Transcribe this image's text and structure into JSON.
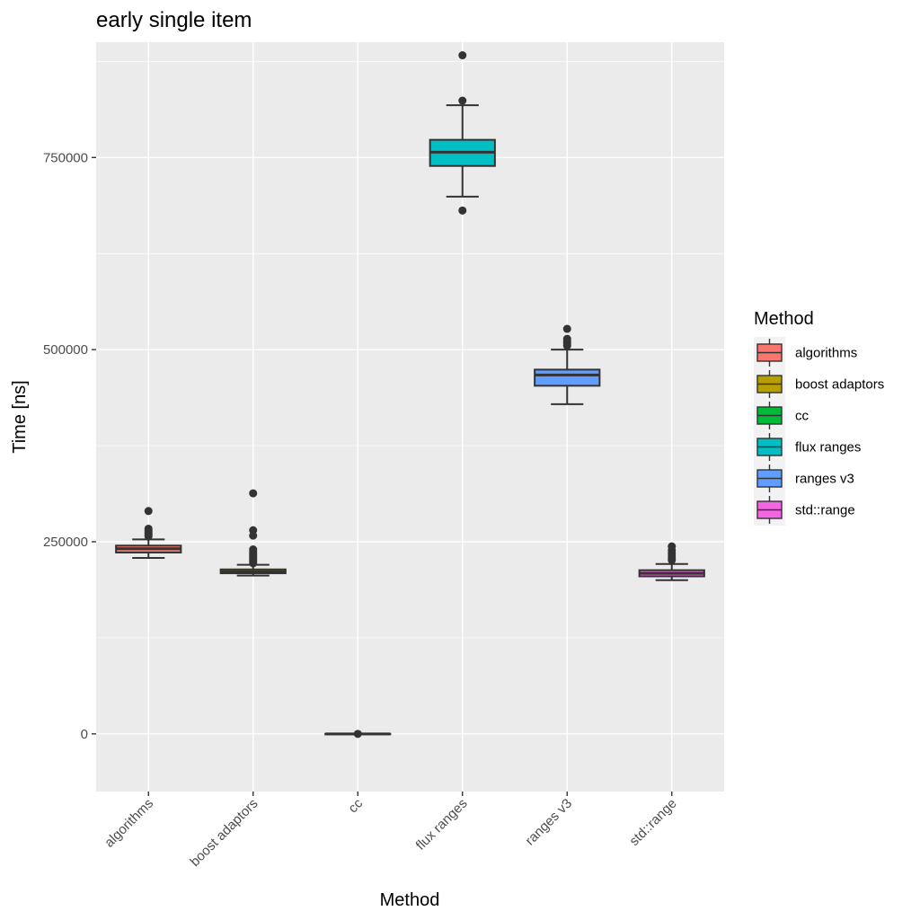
{
  "chart_data": {
    "type": "box",
    "title": "early single item",
    "xlabel": "Method",
    "ylabel": "Time [ns]",
    "ylim": [
      -75000,
      900000
    ],
    "y_ticks": [
      0,
      250000,
      500000,
      750000
    ],
    "y_tick_labels": [
      "0",
      "250000",
      "500000",
      "750000"
    ],
    "grid": true,
    "legend_title": "Method",
    "legend_position": "right",
    "categories": [
      "algorithms",
      "boost adaptors",
      "cc",
      "flux ranges",
      "ranges v3",
      "std::range"
    ],
    "colors": [
      "#F8766D",
      "#B79F00",
      "#00BA38",
      "#00BFC4",
      "#619CFF",
      "#F564E3"
    ],
    "boxes": [
      {
        "category": "algorithms",
        "whisker_low": 229000,
        "q1": 236000,
        "median": 241000,
        "q3": 245000,
        "whisker_high": 253000,
        "outliers": [
          257000,
          259000,
          261000,
          263000,
          265000,
          267000,
          290000
        ]
      },
      {
        "category": "boost adaptors",
        "whisker_low": 206000,
        "q1": 209000,
        "median": 211000,
        "q3": 214000,
        "whisker_high": 220000,
        "outliers": [
          222000,
          224000,
          226000,
          228000,
          230000,
          232000,
          234000,
          236000,
          238000,
          240000,
          258000,
          265000,
          313000
        ]
      },
      {
        "category": "cc",
        "whisker_low": 0,
        "q1": 0,
        "median": 0,
        "q3": 0,
        "whisker_high": 0,
        "outliers": [
          0
        ]
      },
      {
        "category": "flux ranges",
        "whisker_low": 699000,
        "q1": 739000,
        "median": 757000,
        "q3": 773000,
        "whisker_high": 818000,
        "outliers": [
          681000,
          824000,
          883000
        ]
      },
      {
        "category": "ranges v3",
        "whisker_low": 429000,
        "q1": 453000,
        "median": 467000,
        "q3": 474000,
        "whisker_high": 500000,
        "outliers": [
          505000,
          508000,
          511000,
          514000,
          527000
        ]
      },
      {
        "category": "std::range",
        "whisker_low": 200000,
        "q1": 205000,
        "median": 209000,
        "q3": 213000,
        "whisker_high": 221000,
        "outliers": [
          226000,
          229000,
          232000,
          235000,
          239000,
          244000
        ]
      }
    ]
  }
}
